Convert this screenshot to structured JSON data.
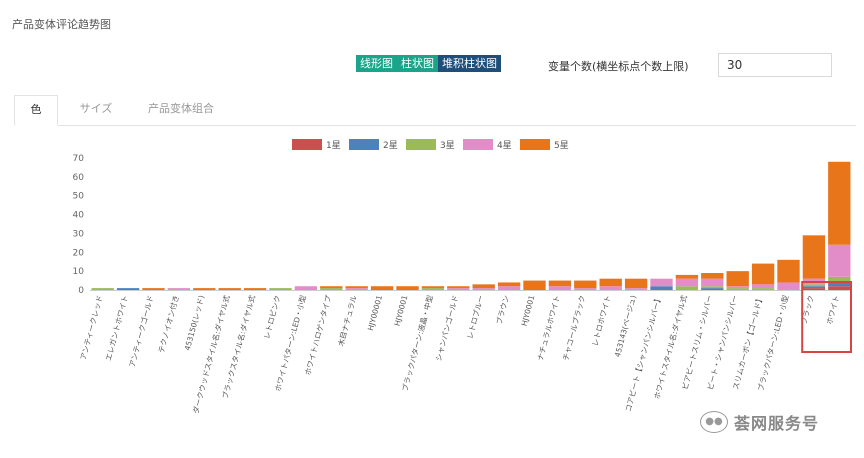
{
  "page": {
    "title": "产品变体评论趋势图"
  },
  "toolbar": {
    "chart_types": [
      {
        "label": "线形图",
        "active": false
      },
      {
        "label": "柱状图",
        "active": false
      },
      {
        "label": "堆积柱状图",
        "active": true
      }
    ],
    "variable_count_label": "变量个数(横坐标点个数上限)",
    "variable_count_value": "30"
  },
  "tabs": [
    {
      "label": "色",
      "active": true
    },
    {
      "label": "サイズ",
      "active": false
    },
    {
      "label": "产品变体组合",
      "active": false
    }
  ],
  "watermark": {
    "text": "荟网服务号",
    "icon": "wechat-icon"
  },
  "chart_data": {
    "type": "bar",
    "stacked": true,
    "ylim": [
      0,
      70
    ],
    "yticks": [
      0,
      10,
      20,
      30,
      40,
      50,
      60,
      70
    ],
    "legend_position": "top-center",
    "grid": false,
    "highlighted_categories": [
      "ブラック",
      "ホワイト"
    ],
    "highlight_color": "#d64541",
    "categories": [
      "アンティークレッド",
      "エレガントホワイト",
      "アンティークゴールド",
      "テクノイオン付き",
      "453150(レッド)",
      "ダークウッドスタイル名:ダイヤル式",
      "ブラックスタイル名:ダイヤル式",
      "レトロピンク",
      "ホワイトパターン:LED・小型",
      "ホワイトハロゲンタイプ",
      "木目ナチュラル",
      "HJY00001",
      "HJY0001",
      "ブラックパターン:液晶・中型",
      "シャンパンゴールド",
      "レトロブルー",
      "ブラウン",
      "HJY0001",
      "ナチュラルホワイト",
      "チャコールブラック",
      "レトロホワイト",
      "453143(ベージュ)",
      "コアビート【シャンパンシルバー】",
      "ホワイトスタイル名:ダイヤル式",
      "ビアビートスリム・シルバー",
      "ビート・シャンパンシルバー",
      "スリムカーボン【ゴールド】",
      "ブラックパターン:LED・小型",
      "ブラック",
      "ホワイト"
    ],
    "series": [
      {
        "name": "1星",
        "color": "#c9504f",
        "values": [
          0,
          0,
          0,
          0,
          0,
          0,
          0,
          0,
          0,
          0,
          0,
          0,
          0,
          0,
          0,
          0,
          0,
          0,
          0,
          0,
          0,
          0,
          0,
          0,
          0,
          0,
          0,
          0,
          1,
          2
        ]
      },
      {
        "name": "2星",
        "color": "#4f81bd",
        "values": [
          0,
          1,
          0,
          0,
          0,
          0,
          0,
          0,
          0,
          0,
          0,
          0,
          0,
          0,
          0,
          0,
          0,
          0,
          0,
          0,
          0,
          0,
          2,
          0,
          1,
          0,
          0,
          0,
          1,
          2
        ]
      },
      {
        "name": "3星",
        "color": "#9bbb59",
        "values": [
          1,
          0,
          0,
          0,
          0,
          0,
          0,
          1,
          0,
          1,
          0,
          0,
          0,
          1,
          0,
          0,
          0,
          0,
          0,
          0,
          0,
          0,
          0,
          2,
          1,
          1,
          1,
          0,
          1,
          3
        ]
      },
      {
        "name": "4星",
        "color": "#e38dc8",
        "values": [
          0,
          0,
          0,
          1,
          0,
          0,
          0,
          0,
          2,
          0,
          1,
          0,
          0,
          0,
          1,
          1,
          2,
          0,
          2,
          1,
          2,
          1,
          4,
          4,
          4,
          1,
          2,
          4,
          3,
          17
        ]
      },
      {
        "name": "5星",
        "color": "#e8751a",
        "values": [
          0,
          0,
          1,
          0,
          1,
          1,
          1,
          0,
          0,
          1,
          1,
          2,
          2,
          1,
          1,
          2,
          2,
          5,
          3,
          4,
          4,
          5,
          0,
          2,
          3,
          8,
          11,
          12,
          23,
          44
        ]
      }
    ]
  }
}
